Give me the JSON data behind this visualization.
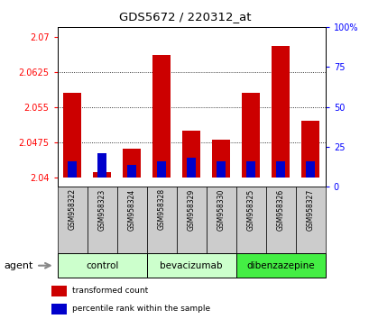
{
  "title": "GDS5672 / 220312_at",
  "samples": [
    "GSM958322",
    "GSM958323",
    "GSM958324",
    "GSM958328",
    "GSM958329",
    "GSM958330",
    "GSM958325",
    "GSM958326",
    "GSM958327"
  ],
  "transformed_count": [
    2.058,
    2.041,
    2.046,
    2.066,
    2.05,
    2.048,
    2.058,
    2.068,
    2.052
  ],
  "percentile_values": [
    10,
    15,
    8,
    10,
    12,
    10,
    10,
    10,
    10
  ],
  "baseline": 2.04,
  "ylim_left": [
    2.038,
    2.072
  ],
  "ylim_right": [
    0,
    100
  ],
  "yticks_left": [
    2.04,
    2.0475,
    2.055,
    2.0625,
    2.07
  ],
  "ytick_labels_left": [
    "2.04",
    "2.0475",
    "2.055",
    "2.0625",
    "2.07"
  ],
  "yticks_right": [
    0,
    25,
    50,
    75,
    100
  ],
  "ytick_labels_right": [
    "0",
    "25",
    "50",
    "75",
    "100%"
  ],
  "groups": [
    {
      "label": "control",
      "indices": [
        0,
        1,
        2
      ],
      "color": "#ccffcc"
    },
    {
      "label": "bevacizumab",
      "indices": [
        3,
        4,
        5
      ],
      "color": "#ccffcc"
    },
    {
      "label": "dibenzazepine",
      "indices": [
        6,
        7,
        8
      ],
      "color": "#44ee44"
    }
  ],
  "bar_color_red": "#cc0000",
  "bar_color_blue": "#0000cc",
  "bar_width": 0.6,
  "blue_bar_width": 0.3,
  "agent_label": "agent",
  "legend_red": "transformed count",
  "legend_blue": "percentile rank within the sample"
}
